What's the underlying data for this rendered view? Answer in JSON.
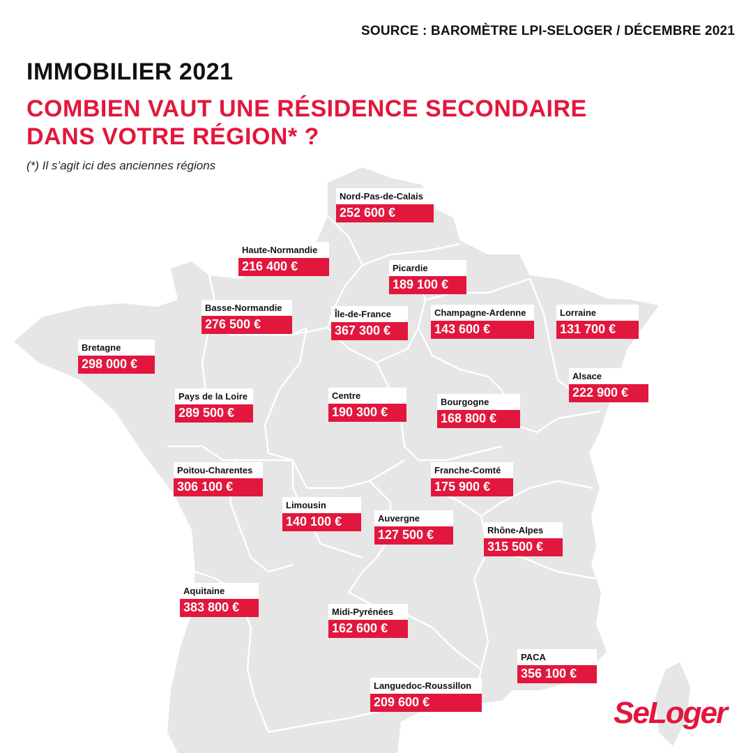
{
  "source": "SOURCE : BAROMÈTRE LPI-SELOGER / DÉCEMBRE 2021",
  "title": "IMMOBILIER 2021",
  "subtitle_line1": "COMBIEN VAUT UNE RÉSIDENCE SECONDAIRE",
  "subtitle_line2": "DANS VOTRE RÉGION* ?",
  "note": "(*) Il s’agit ici des anciennes régions",
  "logo": "SeLoger",
  "colors": {
    "accent": "#e2173d",
    "map": "#e6e6e6",
    "borders": "#ffffff"
  },
  "regions": [
    {
      "name": "Nord-Pas-de-Calais",
      "price": "252 600  €"
    },
    {
      "name": "Haute-Normandie",
      "price": "216 400 €"
    },
    {
      "name": "Picardie",
      "price": "189 100 €"
    },
    {
      "name": "Basse-Normandie",
      "price": "276 500 €"
    },
    {
      "name": "Île-de-France",
      "price": "367 300 €"
    },
    {
      "name": "Champagne-Ardenne",
      "price": "143 600  €"
    },
    {
      "name": "Lorraine",
      "price": "131 700  €"
    },
    {
      "name": "Bretagne",
      "price": "298 000 €"
    },
    {
      "name": "Alsace",
      "price": "222 900  €"
    },
    {
      "name": "Pays de la Loire",
      "price": "289 500 €"
    },
    {
      "name": "Centre",
      "price": "190 300 €"
    },
    {
      "name": "Bourgogne",
      "price": "168 800  €"
    },
    {
      "name": "Poitou-Charentes",
      "price": "306 100  €"
    },
    {
      "name": "Franche-Comté",
      "price": "175 900  €"
    },
    {
      "name": "Limousin",
      "price": "140 100 €"
    },
    {
      "name": "Auvergne",
      "price": "127 500 €"
    },
    {
      "name": "Rhône-Alpes",
      "price": "315 500 €"
    },
    {
      "name": "Aquitaine",
      "price": "383 800 €"
    },
    {
      "name": "Midi-Pyrénées",
      "price": "162 600 €"
    },
    {
      "name": "PACA",
      "price": "356 100 €"
    },
    {
      "name": "Languedoc-Roussillon",
      "price": "209 600  €"
    }
  ]
}
